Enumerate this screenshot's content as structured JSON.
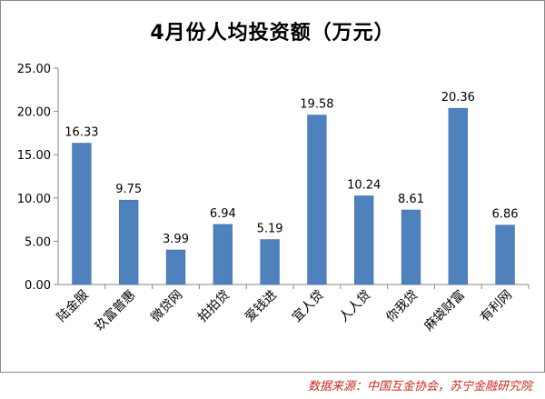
{
  "chart_data": {
    "type": "bar",
    "title": "4月份人均投资额（万元）",
    "categories": [
      "陆金服",
      "玖富普惠",
      "微贷网",
      "拍拍贷",
      "爱钱进",
      "宜人贷",
      "人人贷",
      "你我贷",
      "麻袋财富",
      "有利网"
    ],
    "values": [
      16.33,
      9.75,
      3.99,
      6.94,
      5.19,
      19.58,
      10.24,
      8.61,
      20.36,
      6.86
    ],
    "value_labels": [
      "16.33",
      "9.75",
      "3.99",
      "6.94",
      "5.19",
      "19.58",
      "10.24",
      "8.61",
      "20.36",
      "6.86"
    ],
    "y_ticks": [
      "0.00",
      "5.00",
      "10.00",
      "15.00",
      "20.00",
      "25.00"
    ],
    "ylim": [
      0,
      25
    ],
    "xlabel": "",
    "ylabel": "",
    "grid": false,
    "bar_color": "#4f81bd"
  },
  "source_text": "数据来源：中国互金协会，苏宁金融研究院"
}
